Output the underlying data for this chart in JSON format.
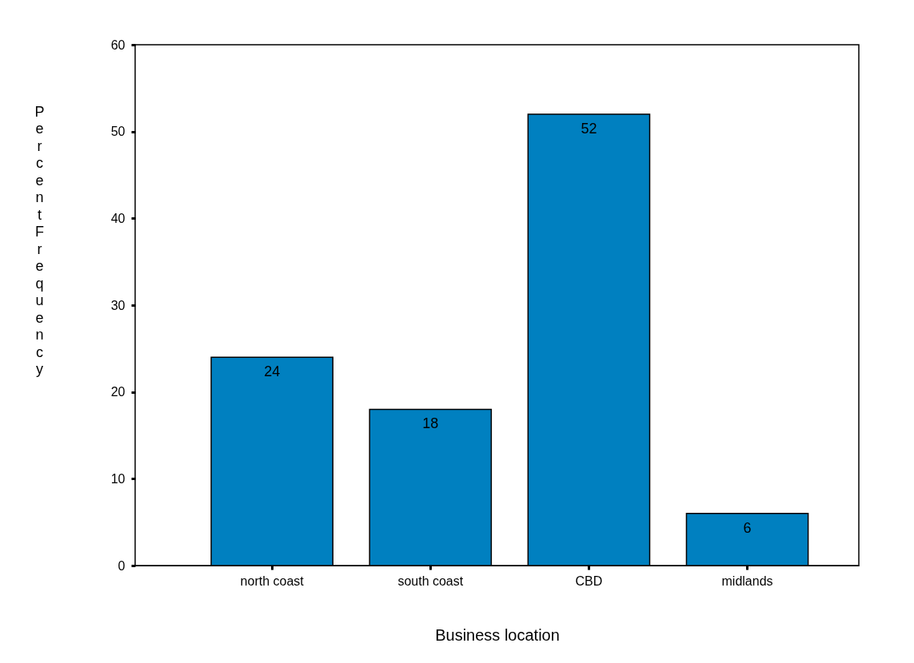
{
  "chart_data": {
    "type": "bar",
    "xlabel": "Business location",
    "ylabel": "Percent Frequency",
    "categories": [
      "north coast",
      "south coast",
      "CBD",
      "midlands"
    ],
    "values": [
      24,
      18,
      52,
      6
    ],
    "color": "#0080c0",
    "ylim": [
      0,
      60
    ],
    "yticks": [
      0,
      10,
      20,
      30,
      40,
      50,
      60
    ],
    "grid": false,
    "data_labels": true
  }
}
